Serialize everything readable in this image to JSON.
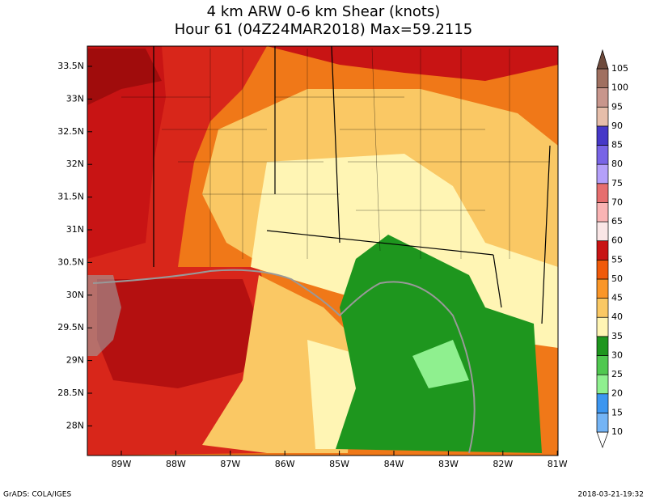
{
  "header": {
    "title": "4 km ARW 0-6 km Shear (knots)",
    "subtitle": "Hour 61 (04Z24MAR2018) Max=59.2115"
  },
  "map": {
    "lat_labels": [
      "33.5N",
      "33N",
      "32.5N",
      "32N",
      "31.5N",
      "31N",
      "30.5N",
      "30N",
      "29.5N",
      "29N",
      "28.5N",
      "28N"
    ],
    "lon_labels": [
      "89W",
      "88W",
      "87W",
      "86W",
      "85W",
      "84W",
      "83W",
      "82W",
      "81W"
    ]
  },
  "colorbar": {
    "levels": [
      10,
      15,
      20,
      25,
      30,
      35,
      40,
      45,
      50,
      55,
      60,
      65,
      70,
      75,
      80,
      85,
      90,
      95,
      100,
      105
    ],
    "colors": [
      "#ffffff",
      "#74b4f5",
      "#3c96f0",
      "#8ff08f",
      "#50c850",
      "#1e961e",
      "#fff5b4",
      "#fac864",
      "#fa9628",
      "#f05a0a",
      "#c81414",
      "#fae6e6",
      "#fab4b4",
      "#e66e6e",
      "#b4a0fa",
      "#7864e6",
      "#4638c8",
      "#e6beaa",
      "#c8968c",
      "#a07060",
      "#6e4a3c"
    ]
  },
  "footer": {
    "left": "GrADS: COLA/IGES",
    "right": "2018-03-21-19:32"
  }
}
